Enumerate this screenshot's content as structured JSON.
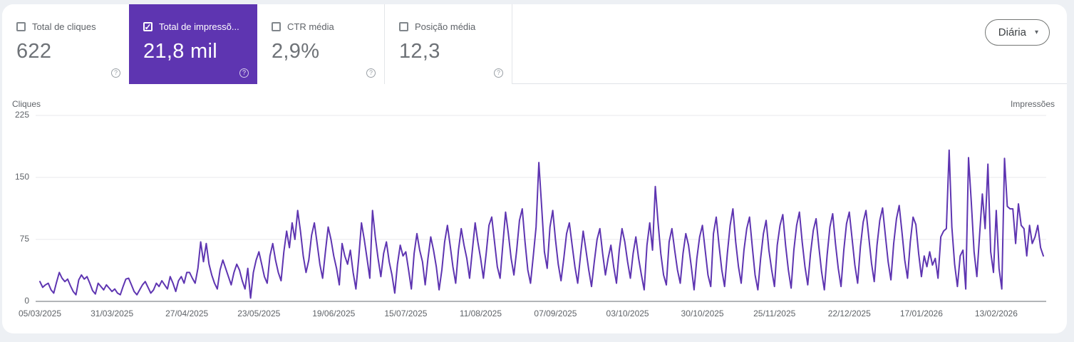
{
  "colors": {
    "accent_purple": "#5e35b1",
    "page_bg": "#edf0f4",
    "panel_bg": "#ffffff"
  },
  "metrics": {
    "check_glyph": "✓",
    "help_glyph": "?",
    "cards": [
      {
        "id": "clicks",
        "label": "Total de cliques",
        "value": "622",
        "checked": false,
        "selected": false
      },
      {
        "id": "impressions",
        "label": "Total de impressõ...",
        "value": "21,8 mil",
        "checked": true,
        "selected": true
      },
      {
        "id": "ctr",
        "label": "CTR média",
        "value": "2,9%",
        "checked": false,
        "selected": false
      },
      {
        "id": "position",
        "label": "Posição média",
        "value": "12,3",
        "checked": false,
        "selected": false
      }
    ]
  },
  "granularity": {
    "label": "Diária",
    "caret": "▾"
  },
  "chart_data": {
    "type": "line",
    "left_axis_label": "Cliques",
    "right_axis_label": "Impressões",
    "y_ticks": [
      225,
      150,
      75,
      0
    ],
    "ylim": [
      0,
      225
    ],
    "grid": true,
    "grid_color": "#e8eaed",
    "axis_color": "#85898d",
    "x_tick_labels": [
      "05/03/2025",
      "31/03/2025",
      "27/04/2025",
      "23/05/2025",
      "19/06/2025",
      "15/07/2025",
      "11/08/2025",
      "07/09/2025",
      "03/10/2025",
      "30/10/2025",
      "25/11/2025",
      "22/12/2025",
      "17/01/2026",
      "13/02/2026"
    ],
    "x_tick_day_index": [
      0,
      26,
      53,
      79,
      106,
      132,
      159,
      186,
      212,
      239,
      265,
      292,
      318,
      345
    ],
    "total_days": 363,
    "series": [
      {
        "name": "Impressões",
        "color": "#5e35b1",
        "values": [
          24,
          17,
          20,
          22,
          14,
          10,
          23,
          35,
          28,
          24,
          27,
          19,
          12,
          8,
          26,
          32,
          27,
          30,
          22,
          13,
          9,
          22,
          18,
          14,
          20,
          16,
          12,
          15,
          10,
          8,
          18,
          27,
          28,
          20,
          12,
          8,
          14,
          20,
          24,
          17,
          10,
          14,
          22,
          18,
          25,
          20,
          15,
          30,
          22,
          12,
          25,
          30,
          22,
          35,
          35,
          28,
          22,
          40,
          72,
          48,
          70,
          45,
          32,
          22,
          15,
          38,
          50,
          40,
          30,
          20,
          35,
          45,
          38,
          25,
          15,
          40,
          4,
          35,
          50,
          60,
          45,
          30,
          22,
          55,
          70,
          50,
          35,
          25,
          60,
          85,
          65,
          95,
          75,
          110,
          85,
          55,
          35,
          50,
          80,
          95,
          70,
          45,
          28,
          60,
          90,
          75,
          55,
          40,
          20,
          70,
          55,
          45,
          62,
          35,
          15,
          52,
          95,
          75,
          52,
          28,
          110,
          78,
          52,
          30,
          58,
          72,
          48,
          32,
          10,
          45,
          68,
          55,
          60,
          38,
          15,
          58,
          82,
          62,
          48,
          20,
          52,
          78,
          62,
          42,
          14,
          38,
          72,
          92,
          68,
          42,
          22,
          62,
          88,
          68,
          52,
          28,
          62,
          95,
          72,
          52,
          28,
          58,
          92,
          102,
          72,
          42,
          28,
          68,
          108,
          82,
          52,
          32,
          62,
          98,
          112,
          72,
          38,
          22,
          55,
          90,
          168,
          115,
          60,
          40,
          90,
          110,
          75,
          45,
          25,
          52,
          82,
          95,
          68,
          42,
          22,
          55,
          85,
          62,
          38,
          18,
          48,
          75,
          88,
          58,
          32,
          52,
          68,
          42,
          22,
          62,
          88,
          72,
          48,
          28,
          58,
          78,
          52,
          32,
          14,
          68,
          95,
          62,
          139,
          95,
          58,
          32,
          20,
          72,
          88,
          62,
          38,
          22,
          58,
          82,
          68,
          42,
          14,
          52,
          78,
          92,
          62,
          32,
          18,
          82,
          102,
          68,
          38,
          18,
          58,
          92,
          112,
          72,
          42,
          22,
          62,
          88,
          102,
          66,
          32,
          14,
          52,
          82,
          98,
          62,
          38,
          18,
          68,
          92,
          105,
          68,
          38,
          16,
          62,
          92,
          108,
          72,
          42,
          20,
          58,
          86,
          100,
          66,
          36,
          14,
          56,
          90,
          106,
          70,
          40,
          18,
          62,
          94,
          108,
          76,
          44,
          22,
          66,
          96,
          110,
          78,
          46,
          24,
          68,
          98,
          113,
          80,
          48,
          26,
          70,
          100,
          116,
          84,
          50,
          28,
          72,
          102,
          93,
          58,
          30,
          55,
          42,
          60,
          44,
          52,
          28,
          78,
          85,
          88,
          183,
          90,
          45,
          18,
          55,
          62,
          15,
          174,
          120,
          60,
          30,
          80,
          130,
          88,
          166,
          60,
          35,
          110,
          40,
          15,
          173,
          115,
          112,
          112,
          70,
          118,
          92,
          88,
          55,
          92,
          70,
          78,
          92,
          65,
          55
        ]
      }
    ]
  }
}
